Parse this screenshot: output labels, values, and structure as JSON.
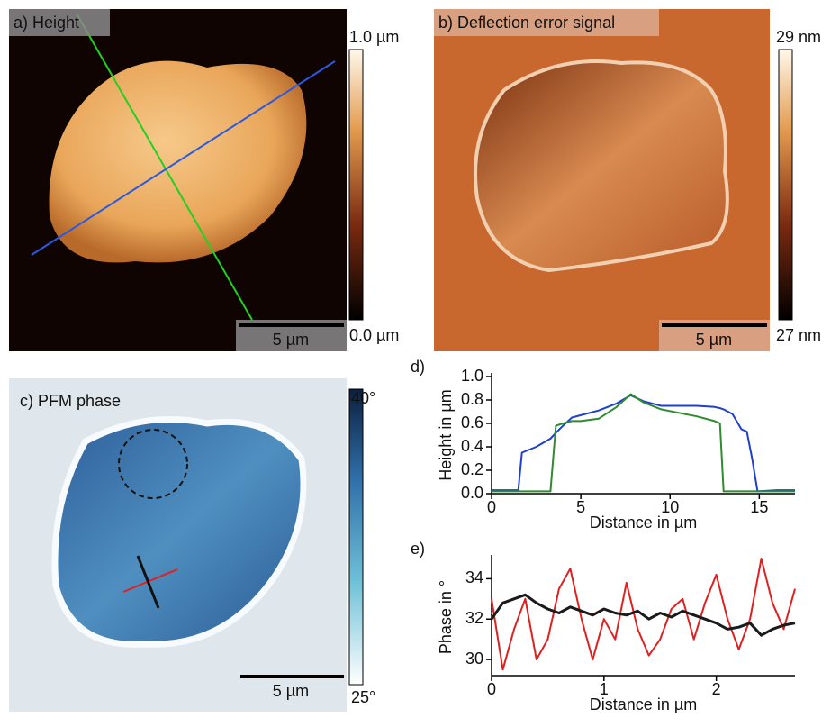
{
  "panels": [
    {
      "label": "a) Height",
      "colorbar_max": "1.0 µm",
      "colorbar_min": "0.0 µm",
      "scale_bar": "5 µm"
    },
    {
      "label": "b) Deflection error signal",
      "colorbar_max": "29 nm",
      "colorbar_min": "27 nm",
      "scale_bar": "5 µm"
    },
    {
      "label": "c) PFM phase",
      "colorbar_max": "40°",
      "colorbar_min": "25°",
      "scale_bar": "5 µm"
    }
  ],
  "chart_data": [
    {
      "type": "line",
      "panel_label": "d)",
      "xlabel": "Distance in µm",
      "ylabel": "Height in µm",
      "x": [
        0,
        1,
        1.5,
        1.7,
        2.5,
        3.3,
        3.6,
        4,
        4.5,
        5,
        6,
        7,
        7.8,
        8.5,
        9.5,
        10.5,
        11.5,
        12.5,
        12.8,
        13,
        13.5,
        14,
        14.3,
        14.6,
        14.9,
        16,
        17
      ],
      "series": [
        {
          "name": "blue profile",
          "color": "#1f3fd0",
          "values": [
            0.03,
            0.03,
            0.03,
            0.35,
            0.4,
            0.47,
            0.52,
            0.58,
            0.65,
            0.67,
            0.71,
            0.77,
            0.84,
            0.79,
            0.75,
            0.75,
            0.75,
            0.74,
            0.73,
            0.72,
            0.68,
            0.55,
            0.53,
            0.3,
            0.02,
            0.03,
            0.03
          ]
        },
        {
          "name": "green profile",
          "color": "#2e8b2e",
          "values": [
            0.02,
            0.02,
            0.02,
            0.02,
            0.02,
            0.02,
            0.58,
            0.6,
            0.62,
            0.62,
            0.64,
            0.74,
            0.85,
            0.78,
            0.72,
            0.69,
            0.66,
            0.62,
            0.6,
            0.02,
            0.02,
            0.02,
            0.02,
            0.02,
            0.02,
            0.02,
            0.02
          ]
        }
      ],
      "xlim": [
        0,
        17
      ],
      "xticks": [
        0,
        5,
        10,
        15
      ],
      "ylim": [
        0,
        1
      ],
      "yticks": [
        {
          "value": 0,
          "label": "0.0"
        },
        0.2,
        0.4,
        0.6,
        0.8,
        {
          "value": 1,
          "label": "1.0"
        }
      ]
    },
    {
      "type": "line",
      "panel_label": "e)",
      "xlabel": "Distance in µm",
      "ylabel": "Phase in °",
      "x": [
        0,
        0.1,
        0.2,
        0.3,
        0.4,
        0.5,
        0.6,
        0.7,
        0.8,
        0.9,
        1,
        1.1,
        1.2,
        1.3,
        1.4,
        1.5,
        1.6,
        1.7,
        1.8,
        1.9,
        2,
        2.1,
        2.2,
        2.3,
        2.4,
        2.5,
        2.6,
        2.7
      ],
      "series": [
        {
          "name": "red profile",
          "color": "#e02020",
          "values": [
            33,
            29.5,
            31.5,
            33,
            30,
            31,
            33.5,
            34.5,
            32,
            30,
            32,
            31,
            33.8,
            31.5,
            30.2,
            31,
            32.5,
            33,
            31,
            32.8,
            34.2,
            32,
            30.5,
            32,
            35,
            32.8,
            31.5,
            33.5
          ]
        },
        {
          "name": "black profile",
          "color": "#1a1a1a",
          "values": [
            32,
            32.8,
            33,
            33.2,
            32.8,
            32.5,
            32.3,
            32.6,
            32.4,
            32.2,
            32.5,
            32.3,
            32.2,
            32.4,
            32,
            32.3,
            32.1,
            32.4,
            32.2,
            32,
            31.8,
            31.5,
            31.6,
            31.8,
            31.2,
            31.5,
            31.7,
            31.8
          ]
        }
      ],
      "xlim": [
        0,
        2.7
      ],
      "xticks": [
        0,
        1,
        2
      ],
      "ylim": [
        29.2,
        35
      ],
      "yticks": [
        30,
        32,
        34
      ]
    }
  ]
}
